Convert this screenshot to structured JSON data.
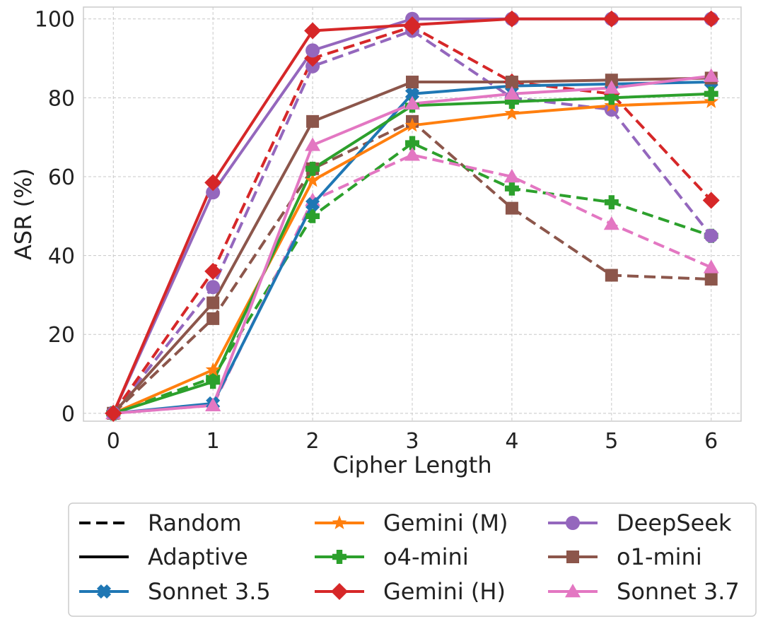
{
  "chart_data": {
    "type": "line",
    "title": "",
    "xlabel": "Cipher Length",
    "ylabel": "ASR (%)",
    "x": [
      0,
      1,
      2,
      3,
      4,
      5,
      6
    ],
    "xlim": [
      -0.3,
      6.3
    ],
    "ylim": [
      -2,
      103
    ],
    "xticks": [
      "0",
      "1",
      "2",
      "3",
      "4",
      "5",
      "6"
    ],
    "yticks": [
      0,
      20,
      40,
      60,
      80,
      100
    ],
    "ytick_labels": [
      "0",
      "20",
      "40",
      "60",
      "80",
      "100"
    ],
    "grid": true,
    "legend_position": "bottom",
    "style_legend": [
      {
        "label": "Random",
        "dash": "dashed"
      },
      {
        "label": "Adaptive",
        "dash": "solid"
      }
    ],
    "models": [
      {
        "name": "Sonnet 3.5",
        "color": "#1f77b4",
        "marker": "x-mark"
      },
      {
        "name": "Gemini (M)",
        "color": "#ff7f0e",
        "marker": "star"
      },
      {
        "name": "o4-mini",
        "color": "#2ca02c",
        "marker": "plus"
      },
      {
        "name": "Gemini (H)",
        "color": "#d62728",
        "marker": "diamond"
      },
      {
        "name": "DeepSeek",
        "color": "#9467bd",
        "marker": "circle"
      },
      {
        "name": "o1-mini",
        "color": "#8c564b",
        "marker": "square"
      },
      {
        "name": "Sonnet 3.7",
        "color": "#e377c2",
        "marker": "triangle"
      }
    ],
    "series": [
      {
        "model": "o1-mini",
        "mode": "Random",
        "values": [
          0,
          24,
          62,
          74,
          52,
          35,
          34
        ]
      },
      {
        "model": "o4-mini",
        "mode": "Random",
        "values": [
          0,
          9,
          50,
          68.5,
          57,
          53.5,
          45
        ]
      },
      {
        "model": "Sonnet 3.7",
        "mode": "Random",
        "values": [
          0,
          2,
          54,
          65.5,
          60,
          48,
          37
        ]
      },
      {
        "model": "DeepSeek",
        "mode": "Random",
        "values": [
          0,
          32,
          88,
          97,
          80,
          77,
          45
        ]
      },
      {
        "model": "Gemini (H)",
        "mode": "Random",
        "values": [
          0,
          36,
          90,
          98,
          84,
          81,
          54
        ]
      },
      {
        "model": "Sonnet 3.5",
        "mode": "Adaptive",
        "values": [
          0,
          2.5,
          53,
          81,
          83,
          83.5,
          84
        ]
      },
      {
        "model": "Gemini (M)",
        "mode": "Adaptive",
        "values": [
          0,
          11,
          59,
          73,
          76,
          78,
          79
        ]
      },
      {
        "model": "o4-mini",
        "mode": "Adaptive",
        "values": [
          0,
          8,
          62,
          78,
          79,
          80,
          81
        ]
      },
      {
        "model": "o1-mini",
        "mode": "Adaptive",
        "values": [
          0,
          28,
          74,
          84,
          84,
          84.5,
          85
        ]
      },
      {
        "model": "Sonnet 3.7",
        "mode": "Adaptive",
        "values": [
          0,
          2,
          68,
          78.5,
          81,
          82.5,
          85.5
        ]
      },
      {
        "model": "DeepSeek",
        "mode": "Adaptive",
        "values": [
          0,
          56,
          92,
          100,
          100,
          100,
          100
        ]
      },
      {
        "model": "Gemini (H)",
        "mode": "Adaptive",
        "values": [
          0,
          58.5,
          97,
          98.5,
          100,
          100,
          100
        ]
      }
    ]
  }
}
